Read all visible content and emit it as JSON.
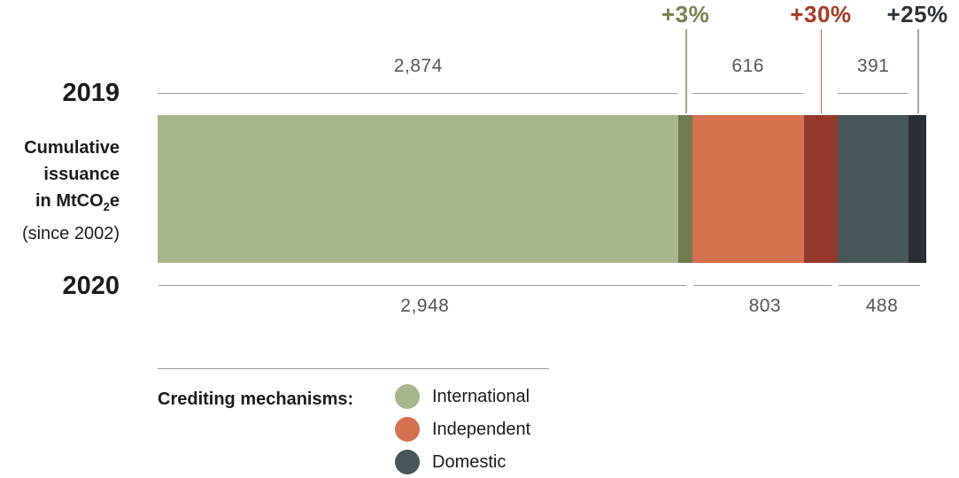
{
  "chart_data": {
    "type": "bar",
    "orientation": "horizontal-stacked",
    "title": "Cumulative issuance in MtCO2e (since 2002)",
    "unit": "MtCO2e",
    "row_label": {
      "line1": "Cumulative",
      "line2": "issuance",
      "line3_prefix": "in MtCO",
      "line3_sub": "2",
      "line3_suffix": "e",
      "line4": "(since 2002)"
    },
    "years": {
      "top": "2019",
      "bottom": "2020"
    },
    "categories": [
      "International",
      "Independent",
      "Domestic"
    ],
    "mechanisms": [
      {
        "name": "International",
        "value_2019": 2874,
        "value_2020": 2948,
        "label_2019": "2,874",
        "label_2020": "2,948",
        "growth_pct": 3,
        "growth_label": "+3%",
        "color_2019": "#a8b68b",
        "color_growth": "#6f7d4e",
        "growth_label_color": "#76824e",
        "tick_color": "#a2ab7c"
      },
      {
        "name": "Independent",
        "value_2019": 616,
        "value_2020": 803,
        "label_2019": "616",
        "label_2020": "803",
        "growth_pct": 30,
        "growth_label": "+30%",
        "color_2019": "#d4714e",
        "color_growth": "#953a2a",
        "growth_label_color": "#a53b27",
        "tick_color": "#c4604a"
      },
      {
        "name": "Domestic",
        "value_2019": 391,
        "value_2020": 488,
        "label_2019": "391",
        "label_2020": "488",
        "growth_pct": 25,
        "growth_label": "+25%",
        "color_2019": "#465659",
        "color_growth": "#292f34",
        "growth_label_color": "#2b3338",
        "tick_color": "#a6a6a6"
      }
    ]
  },
  "legend": {
    "title": "Crediting mechanisms:",
    "items": [
      {
        "label": "International",
        "color": "#a8b68b"
      },
      {
        "label": "Independent",
        "color": "#d4714e"
      },
      {
        "label": "Domestic",
        "color": "#465659"
      }
    ]
  }
}
